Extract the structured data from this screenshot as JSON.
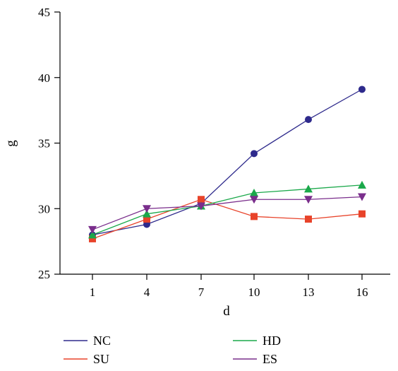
{
  "chart_data": {
    "type": "line",
    "xlabel": "d",
    "ylabel": "g",
    "categories": [
      "1",
      "4",
      "7",
      "10",
      "13",
      "16"
    ],
    "x": [
      1,
      4,
      7,
      10,
      13,
      16
    ],
    "ylim": [
      25,
      45
    ],
    "yticks": [
      25,
      30,
      35,
      40,
      45
    ],
    "grid": false,
    "legend_position": "bottom",
    "series": [
      {
        "name": "NC",
        "color": "#2e2a8c",
        "marker": "circle",
        "values": [
          28.0,
          28.8,
          30.4,
          34.2,
          36.8,
          39.1
        ]
      },
      {
        "name": "SU",
        "color": "#e8432a",
        "marker": "square",
        "values": [
          27.7,
          29.2,
          30.7,
          29.4,
          29.2,
          29.6
        ]
      },
      {
        "name": "HD",
        "color": "#1aa84a",
        "marker": "triangle-up",
        "values": [
          28.0,
          29.6,
          30.2,
          31.2,
          31.5,
          31.8
        ]
      },
      {
        "name": "ES",
        "color": "#7a2e8c",
        "marker": "triangle-down",
        "values": [
          28.4,
          30.0,
          30.2,
          30.7,
          30.7,
          30.9
        ]
      }
    ]
  }
}
